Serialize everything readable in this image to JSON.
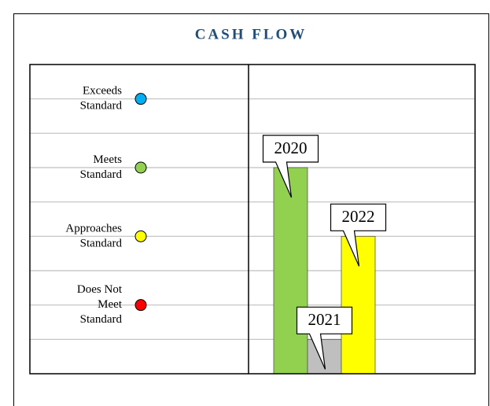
{
  "chart_data": {
    "type": "bar",
    "title": "CASH FLOW",
    "categories": [
      "2020",
      "2021",
      "2022"
    ],
    "values": [
      6,
      1,
      4
    ],
    "colors": [
      "#92d050",
      "#bfbfbf",
      "#ffff00"
    ],
    "ylim": [
      0,
      9
    ],
    "yticks": [
      1,
      2,
      3,
      4,
      5,
      6,
      7,
      8
    ],
    "grid": true,
    "levels": [
      {
        "value": 8,
        "label": [
          "Exceeds",
          "Standard"
        ],
        "color": "#00b0f0"
      },
      {
        "value": 6,
        "label": [
          "Meets",
          "Standard"
        ],
        "color": "#92d050"
      },
      {
        "value": 4,
        "label": [
          "Approaches",
          "Standard"
        ],
        "color": "#ffff00"
      },
      {
        "value": 2,
        "label": [
          "Does Not",
          "Meet",
          "Standard"
        ],
        "color": "#ff0000"
      }
    ]
  }
}
